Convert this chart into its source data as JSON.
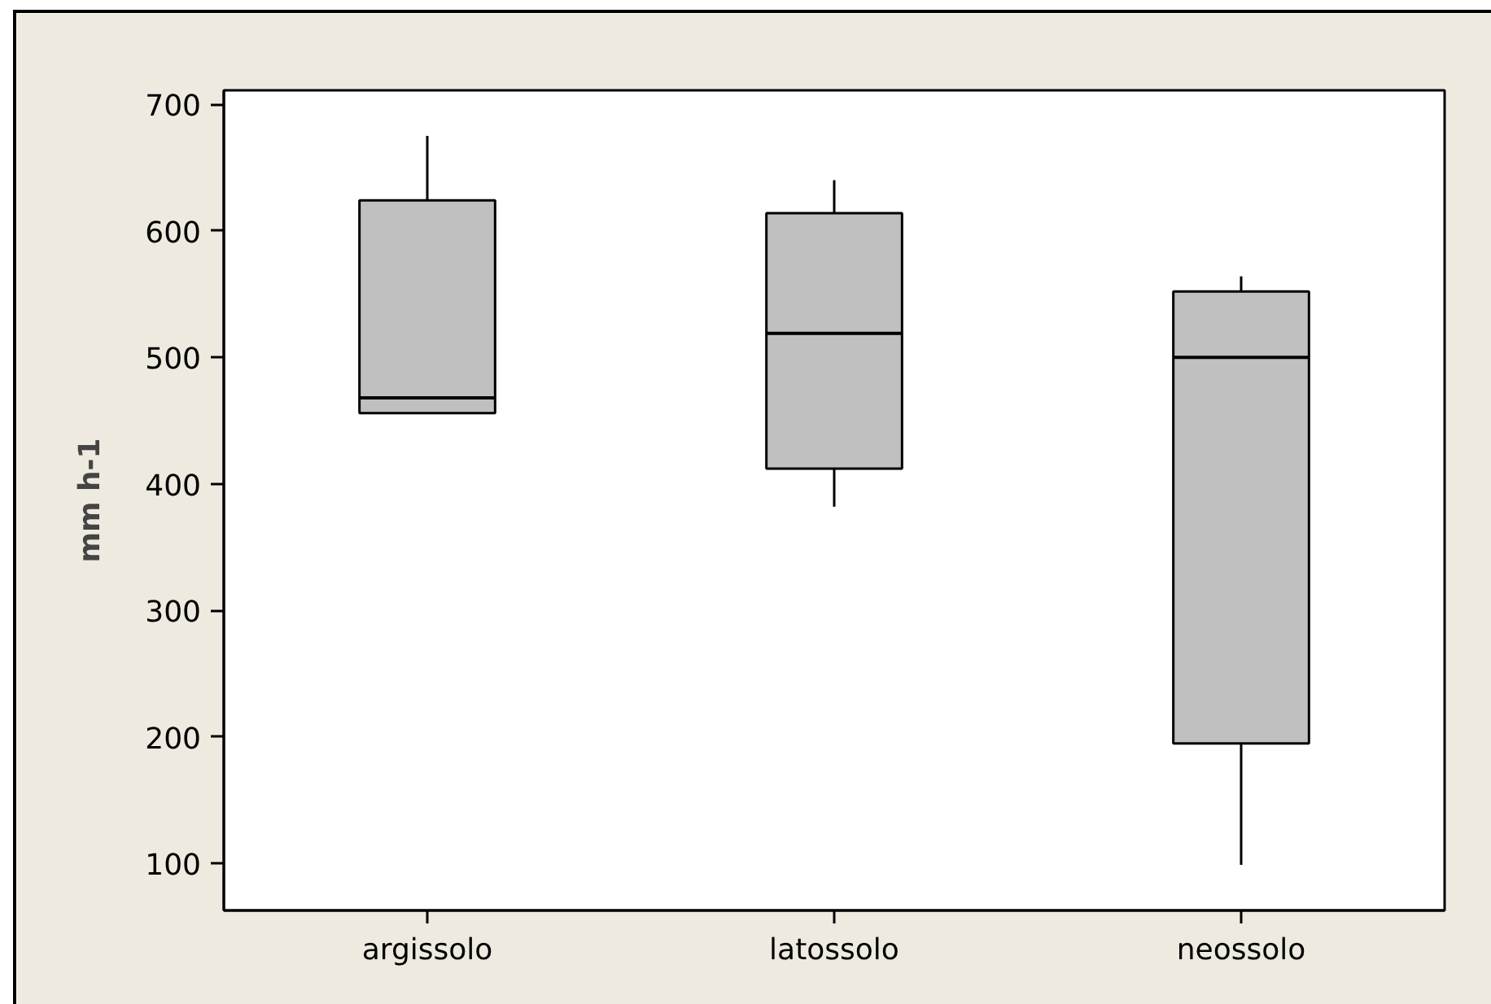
{
  "chart_data": {
    "type": "box",
    "ylabel": "mm h-1",
    "categories": [
      "argissolo",
      "latossolo",
      "neossolo"
    ],
    "color": "#c0c0c0",
    "boxes": [
      {
        "low": 456,
        "q1": 456,
        "median": 468,
        "q3": 624,
        "high": 675
      },
      {
        "low": 382,
        "q1": 412,
        "median": 519,
        "q3": 614,
        "high": 640
      },
      {
        "low": 99,
        "q1": 195,
        "median": 500,
        "q3": 552,
        "high": 564
      }
    ],
    "ylim": [
      63,
      711
    ],
    "yticks": [
      100,
      200,
      300,
      400,
      500,
      600,
      700
    ],
    "grid": false
  }
}
